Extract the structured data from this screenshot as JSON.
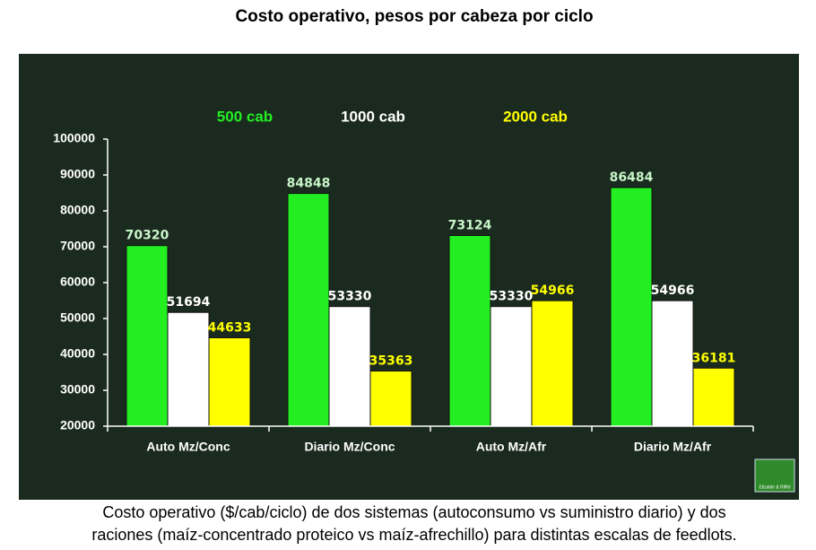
{
  "chart_data": {
    "type": "bar",
    "title": "Costo operativo, pesos por cabeza por ciclo",
    "categories": [
      "Auto Mz/Conc",
      "Diario Mz/Conc",
      "Auto Mz/Afr",
      "Diario Mz/Afr"
    ],
    "series": [
      {
        "name": "500 cab",
        "color": "#22ee22",
        "label_color": "#c8f5c8",
        "values": [
          70320,
          84848,
          73124,
          86484
        ]
      },
      {
        "name": "1000 cab",
        "color": "#ffffff",
        "label_color": "#ffffff",
        "values": [
          51694,
          53330,
          53330,
          54966
        ]
      },
      {
        "name": "2000 cab",
        "color": "#ffff00",
        "label_color": "#ffff00",
        "values": [
          44633,
          35363,
          54966,
          36181
        ]
      }
    ],
    "ylim": [
      20000,
      100000
    ],
    "yticks": [
      20000,
      30000,
      40000,
      50000,
      60000,
      70000,
      80000,
      90000,
      100000
    ],
    "grid": false
  },
  "logo": "Elizalde & Riffel",
  "caption": [
    "Costo operativo ($/cab/ciclo) de dos sistemas (autoconsumo vs suministro diario) y dos",
    "raciones (maíz-concentrado proteico vs maíz-afrechillo) para distintas escalas de feedlots."
  ]
}
